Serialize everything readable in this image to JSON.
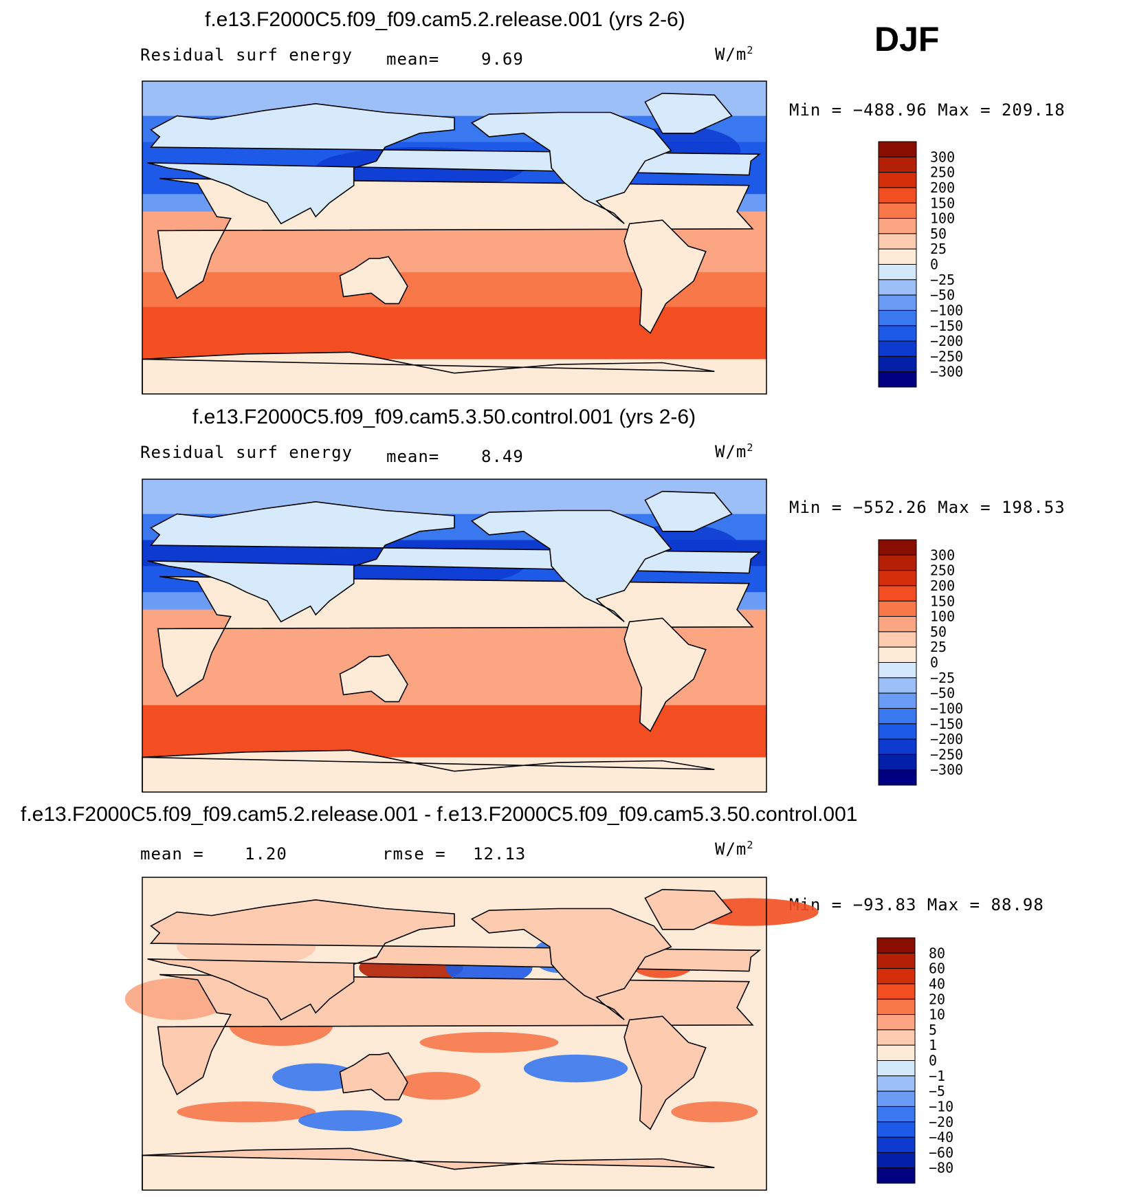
{
  "season": "DJF",
  "colors": {
    "scale": [
      "#000080",
      "#0520a8",
      "#0d3bd0",
      "#1e5ae8",
      "#3a78ef",
      "#6b9cf5",
      "#9dbff8",
      "#d4e8fc",
      "#fdebd8",
      "#fdcbb0",
      "#fba582",
      "#f8784a",
      "#f24e21",
      "#d42e0b",
      "#b32006",
      "#8a0d02"
    ],
    "land": "#d7eafb",
    "coast": "#000000"
  },
  "chart_data": [
    {
      "type": "heatmap",
      "title": "f.e13.F2000C5.f09_f09.cam5.2.release.001 (yrs 2-6)",
      "variable": "Residual surf energy",
      "mean_label": "mean=",
      "mean": "9.69",
      "units": "W/m",
      "units_exp": "2",
      "min_text": "Min = −488.96 Max = 209.18",
      "min": -488.96,
      "max": 209.18,
      "colorbar_levels": [
        "300",
        "250",
        "200",
        "150",
        "100",
        "50",
        "25",
        "0",
        "−25",
        "−50",
        "−100",
        "−150",
        "−200",
        "−250",
        "−300"
      ],
      "zonal_profile": [
        {
          "lat": 90,
          "value": -40
        },
        {
          "lat": 70,
          "value": -120
        },
        {
          "lat": 55,
          "value": -200
        },
        {
          "lat": 40,
          "value": -180
        },
        {
          "lat": 25,
          "value": -60
        },
        {
          "lat": 15,
          "value": 60
        },
        {
          "lat": 0,
          "value": 80
        },
        {
          "lat": -20,
          "value": 100
        },
        {
          "lat": -40,
          "value": 180
        },
        {
          "lat": -55,
          "value": 150
        },
        {
          "lat": -70,
          "value": 10
        },
        {
          "lat": -90,
          "value": 5
        }
      ]
    },
    {
      "type": "heatmap",
      "title": "f.e13.F2000C5.f09_f09.cam5.3.50.control.001 (yrs 2-6)",
      "variable": "Residual surf energy",
      "mean_label": "mean=",
      "mean": "8.49",
      "units": "W/m",
      "units_exp": "2",
      "min_text": "Min = −552.26 Max = 198.53",
      "min": -552.26,
      "max": 198.53,
      "colorbar_levels": [
        "300",
        "250",
        "200",
        "150",
        "100",
        "50",
        "25",
        "0",
        "−25",
        "−50",
        "−100",
        "−150",
        "−200",
        "−250",
        "−300"
      ],
      "zonal_profile": [
        {
          "lat": 90,
          "value": -40
        },
        {
          "lat": 70,
          "value": -120
        },
        {
          "lat": 55,
          "value": -220
        },
        {
          "lat": 40,
          "value": -200
        },
        {
          "lat": 25,
          "value": -80
        },
        {
          "lat": 15,
          "value": 60
        },
        {
          "lat": 0,
          "value": 80
        },
        {
          "lat": -20,
          "value": 90
        },
        {
          "lat": -40,
          "value": 170
        },
        {
          "lat": -55,
          "value": 160
        },
        {
          "lat": -70,
          "value": 10
        },
        {
          "lat": -90,
          "value": 5
        }
      ]
    },
    {
      "type": "heatmap",
      "title": "f.e13.F2000C5.f09_f09.cam5.2.release.001 - f.e13.F2000C5.f09_f09.cam5.3.50.control.001",
      "mean_label": "mean =",
      "mean": "1.20",
      "rmse_label": "rmse =",
      "rmse": "12.13",
      "units": "W/m",
      "units_exp": "2",
      "min_text": "Min = −93.83 Max =  88.98",
      "min": -93.83,
      "max": 88.98,
      "colorbar_levels": [
        "80",
        "60",
        "40",
        "20",
        "10",
        "5",
        "1",
        "0",
        "−1",
        "−5",
        "−10",
        "−20",
        "−40",
        "−60",
        "−80"
      ]
    }
  ]
}
